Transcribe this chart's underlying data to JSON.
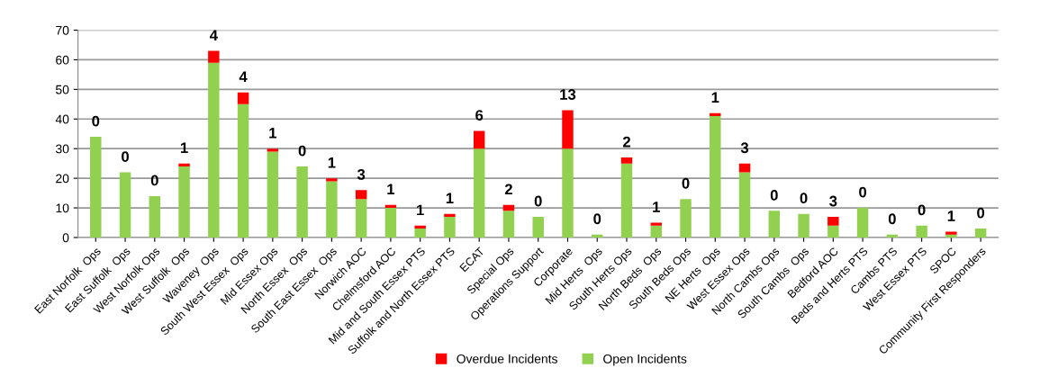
{
  "chart_data": {
    "type": "bar",
    "stacked": true,
    "categories": [
      "East Norfolk  Ops",
      "East Suffolk  Ops",
      "West Norfolk Ops",
      "West Suffolk  Ops",
      "Waveney  Ops",
      "South West Essex  Ops",
      "Mid Essex Ops",
      "North Essex  Ops",
      "South East Essex  Ops",
      "Norwich AOC",
      "Chelmsford AOC",
      "Mid and South Essex PTS",
      "Suffolk and North Essex PTS",
      "ECAT",
      "Special Ops",
      "Operations Support",
      "Corporate",
      "Mid Herts  Ops",
      "South Herts Ops",
      "North Beds  Ops",
      "South Beds Ops",
      "NE Herts  Ops",
      "West Essex Ops",
      "North Cambs Ops",
      "South Cambs  Ops",
      "Bedford AOC",
      "Beds and Herts PTS",
      "Cambs PTS",
      "West Essex PTS",
      "SPOC",
      "Community First Responders"
    ],
    "series": [
      {
        "name": "Open Incidents",
        "color": "#92d050",
        "values": [
          34,
          22,
          14,
          24,
          59,
          45,
          29,
          24,
          19,
          13,
          10,
          3,
          7,
          30,
          9,
          7,
          30,
          1,
          25,
          4,
          13,
          41,
          22,
          9,
          8,
          4,
          10,
          1,
          4,
          1,
          3
        ]
      },
      {
        "name": "Overdue Incidents",
        "color": "#ff0000",
        "values": [
          0,
          0,
          0,
          1,
          4,
          4,
          1,
          0,
          1,
          3,
          1,
          1,
          1,
          6,
          2,
          0,
          13,
          0,
          2,
          1,
          0,
          1,
          3,
          0,
          0,
          3,
          0,
          0,
          0,
          1,
          0
        ],
        "value_labels": [
          "0",
          "0",
          "0",
          "1",
          "4",
          "4",
          "1",
          "0",
          "1",
          "3",
          "1",
          "1",
          "1",
          "6",
          "2",
          "0",
          "13",
          "0",
          "2",
          "1",
          "0",
          "1",
          "3",
          "0",
          "0",
          "3",
          "0",
          "0",
          "0",
          "1",
          "0"
        ]
      }
    ],
    "ylim": [
      0,
      70
    ],
    "yticks": [
      0,
      10,
      20,
      30,
      40,
      50,
      60,
      70
    ],
    "grid": "y",
    "legend": "bottom"
  }
}
